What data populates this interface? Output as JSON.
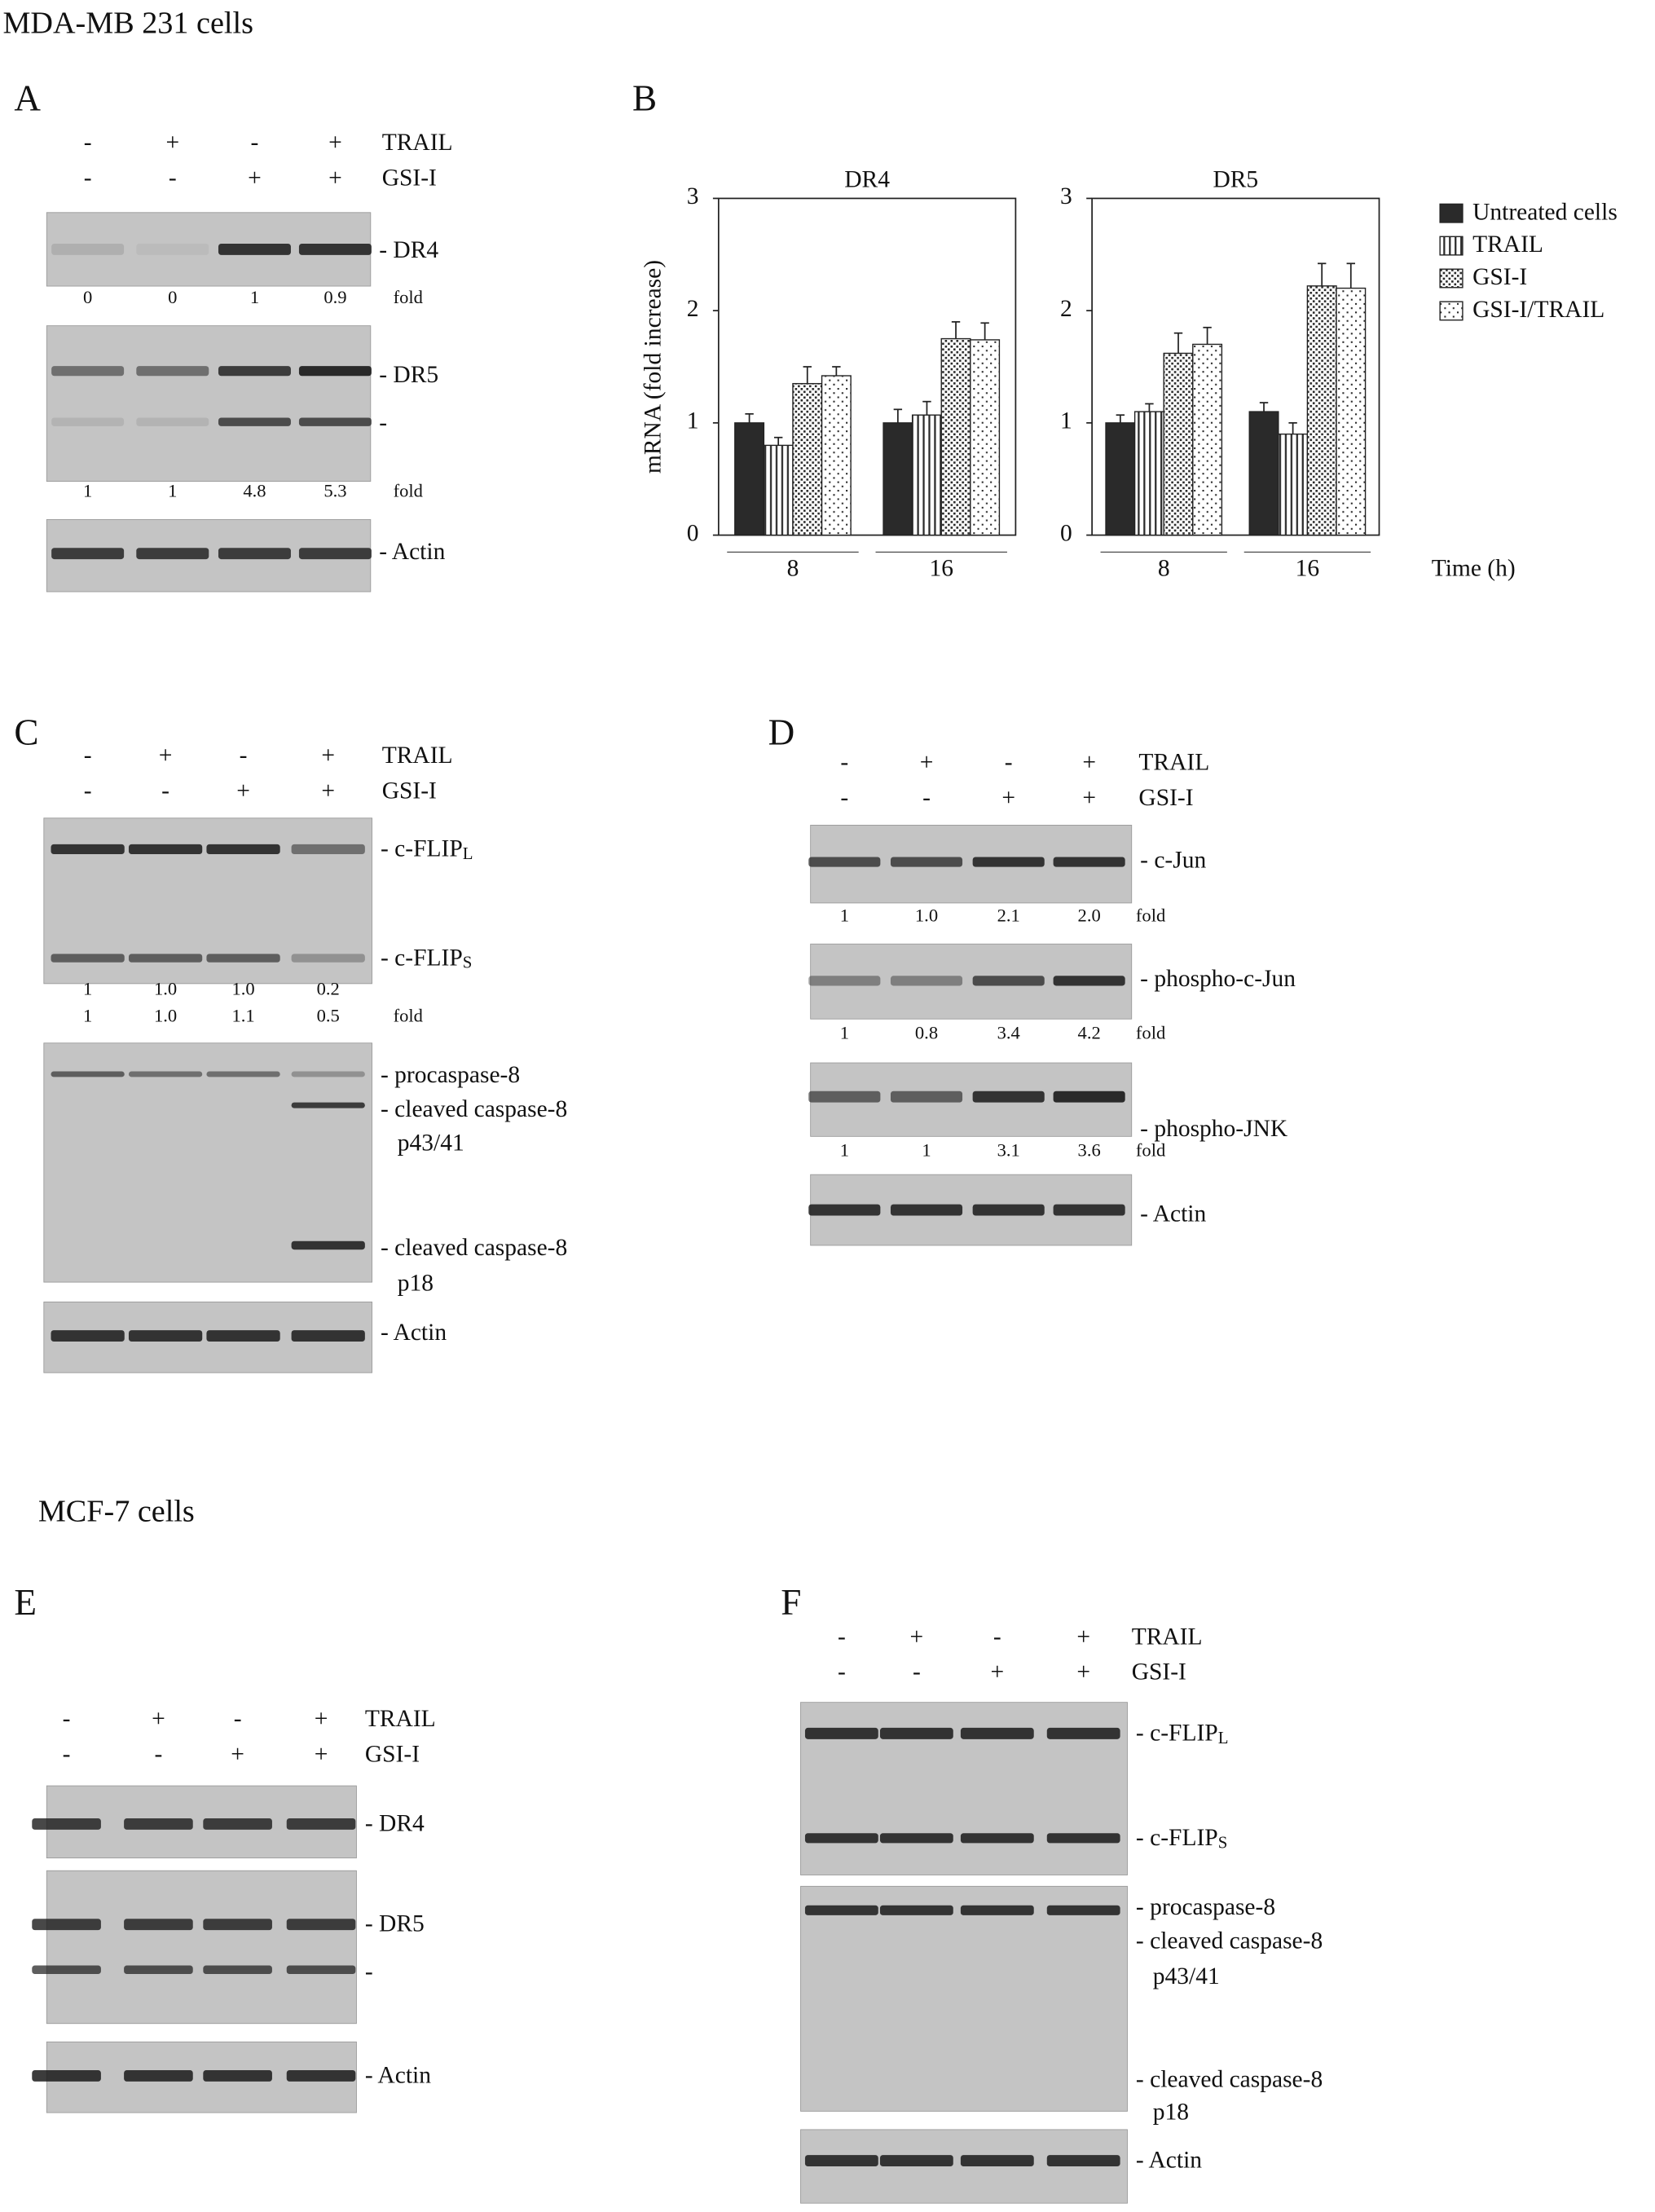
{
  "titles": [
    "MDA-MB 231 cells",
    "MCF-7 cells"
  ],
  "panels": [
    {
      "letter": "A",
      "treatments": [
        {
          "label": "TRAIL",
          "signs": [
            "-",
            "+",
            "-",
            "+"
          ]
        },
        {
          "label": "GSI-I",
          "signs": [
            "-",
            "-",
            "+",
            "+"
          ]
        }
      ],
      "blots": [
        {
          "labels": [
            "- DR4"
          ],
          "folds": [
            {
              "values": [
                "0",
                "0",
                "1",
                "0.9"
              ],
              "unit": "fold"
            }
          ]
        },
        {
          "labels": [
            "- DR5",
            "-"
          ],
          "folds": [
            {
              "values": [
                "1",
                "1",
                "4.8",
                "5.3"
              ],
              "unit": "fold"
            }
          ]
        },
        {
          "labels": [
            "- Actin"
          ]
        }
      ]
    },
    {
      "letter": "B"
    },
    {
      "letter": "C",
      "treatments": [
        {
          "label": "TRAIL",
          "signs": [
            "-",
            "+",
            "-",
            "+"
          ]
        },
        {
          "label": "GSI-I",
          "signs": [
            "-",
            "-",
            "+",
            "+"
          ]
        }
      ],
      "blots": [
        {
          "labels": [
            {
              "text": "- c-FLIP",
              "sub": "L"
            },
            {
              "text": "- c-FLIP",
              "sub": "S"
            }
          ],
          "folds": [
            {
              "values": [
                "1",
                "1.0",
                "1.0",
                "0.2"
              ]
            },
            {
              "values": [
                "1",
                "1.0",
                "1.1",
                "0.5"
              ],
              "unit": "fold"
            }
          ]
        },
        {
          "labels": [
            "- procaspase-8",
            "- cleaved caspase-8",
            "p43/41",
            "- cleaved caspase-8",
            "p18"
          ]
        },
        {
          "labels": [
            "- Actin"
          ]
        }
      ]
    },
    {
      "letter": "D",
      "treatments": [
        {
          "label": "TRAIL",
          "signs": [
            "-",
            "+",
            "-",
            "+"
          ]
        },
        {
          "label": "GSI-I",
          "signs": [
            "-",
            "-",
            "+",
            "+"
          ]
        }
      ],
      "blots": [
        {
          "labels": [
            "- c-Jun"
          ],
          "folds": [
            {
              "values": [
                "1",
                "1.0",
                "2.1",
                "2.0"
              ],
              "unit": "fold"
            }
          ]
        },
        {
          "labels": [
            "- phospho-c-Jun"
          ],
          "folds": [
            {
              "values": [
                "1",
                "0.8",
                "3.4",
                "4.2"
              ],
              "unit": "fold"
            }
          ]
        },
        {
          "labels": [
            "- phospho-JNK"
          ],
          "folds": [
            {
              "values": [
                "1",
                "1",
                "3.1",
                "3.6"
              ],
              "unit": "fold"
            }
          ]
        },
        {
          "labels": [
            "- Actin"
          ]
        }
      ]
    },
    {
      "letter": "E",
      "treatments": [
        {
          "label": "TRAIL",
          "signs": [
            "-",
            "+",
            "-",
            "+"
          ]
        },
        {
          "label": "GSI-I",
          "signs": [
            "-",
            "-",
            "+",
            "+"
          ]
        }
      ],
      "blots": [
        {
          "labels": [
            "- DR4"
          ]
        },
        {
          "labels": [
            "- DR5",
            "-"
          ]
        },
        {
          "labels": [
            "- Actin"
          ]
        }
      ]
    },
    {
      "letter": "F",
      "treatments": [
        {
          "label": "TRAIL",
          "signs": [
            "-",
            "+",
            "-",
            "+"
          ]
        },
        {
          "label": "GSI-I",
          "signs": [
            "-",
            "-",
            "+",
            "+"
          ]
        }
      ],
      "blots": [
        {
          "labels": [
            {
              "text": "- c-FLIP",
              "sub": "L"
            },
            {
              "text": "- c-FLIP",
              "sub": "S"
            }
          ]
        },
        {
          "labels": [
            "- procaspase-8",
            "- cleaved caspase-8",
            "p43/41",
            "- cleaved caspase-8",
            "p18"
          ]
        },
        {
          "labels": [
            "- Actin"
          ]
        }
      ]
    }
  ],
  "chart_data": [
    {
      "type": "bar",
      "title": "DR4",
      "y_label": "mRNA (fold increase)",
      "categories": [
        "8",
        "16"
      ],
      "ylim": [
        0,
        3
      ],
      "yticks": [
        0,
        1,
        2,
        3
      ],
      "legend": "right",
      "series": [
        {
          "name": "Untreated cells",
          "color": "#2a2a2a",
          "pattern": "solid",
          "values": [
            1.0,
            1.0
          ],
          "errors": [
            0.08,
            0.12
          ]
        },
        {
          "name": "TRAIL",
          "color": "#2a2a2a",
          "pattern": "vertical",
          "values": [
            0.8,
            1.07
          ],
          "errors": [
            0.07,
            0.12
          ]
        },
        {
          "name": "GSI-I",
          "color": "#2a2a2a",
          "pattern": "dense-dots",
          "values": [
            1.35,
            1.75
          ],
          "errors": [
            0.15,
            0.15
          ]
        },
        {
          "name": "GSI-I/TRAIL",
          "color": "#2a2a2a",
          "pattern": "sparse-dots",
          "values": [
            1.42,
            1.74
          ],
          "errors": [
            0.08,
            0.15
          ]
        }
      ]
    },
    {
      "type": "bar",
      "title": "DR5",
      "x_label": "Time (h)",
      "categories": [
        "8",
        "16"
      ],
      "ylim": [
        0,
        3
      ],
      "yticks": [
        0,
        1,
        2,
        3
      ],
      "series": [
        {
          "color": "#2a2a2a",
          "pattern": "solid",
          "values": [
            1.0,
            1.1
          ],
          "errors": [
            0.07,
            0.08
          ]
        },
        {
          "color": "#2a2a2a",
          "pattern": "vertical",
          "values": [
            1.1,
            0.9
          ],
          "errors": [
            0.07,
            0.1
          ]
        },
        {
          "color": "#2a2a2a",
          "pattern": "dense-dots",
          "values": [
            1.62,
            2.22
          ],
          "errors": [
            0.18,
            0.2
          ]
        },
        {
          "color": "#2a2a2a",
          "pattern": "sparse-dots",
          "values": [
            1.7,
            2.2
          ],
          "errors": [
            0.15,
            0.22
          ]
        }
      ]
    }
  ]
}
